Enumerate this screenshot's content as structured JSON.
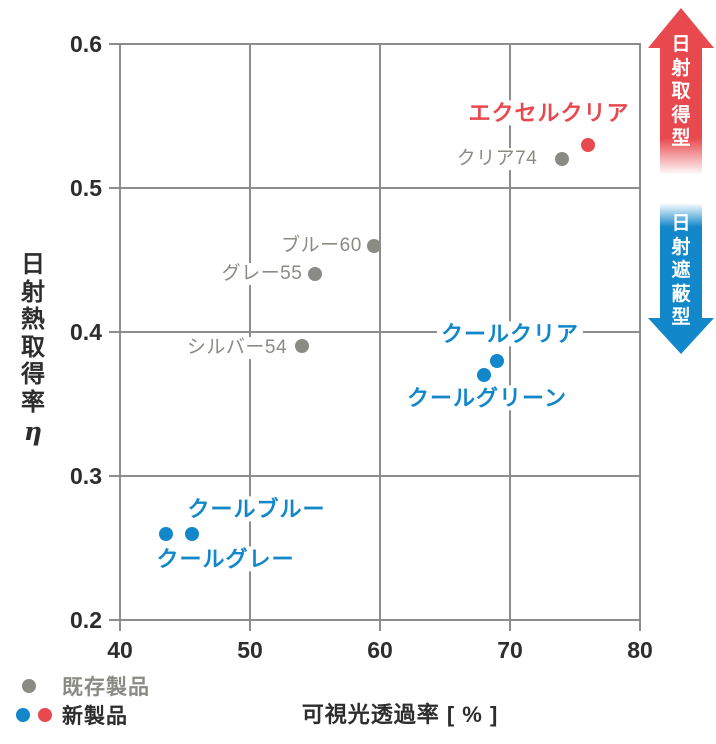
{
  "colors": {
    "red": "#e8494f",
    "blue": "#1287c9",
    "gray": "#8b8b85",
    "grid": "#8d8d8d",
    "text": "#2d2d2d"
  },
  "chart_data": {
    "type": "scatter",
    "title": "",
    "xlabel": "可視光透過率 [ % ]",
    "ylabel": "日射熱取得率",
    "ylabel_symbol": "η",
    "xlim": [
      40,
      80
    ],
    "ylim": [
      0.2,
      0.6
    ],
    "xticks": [
      40,
      50,
      60,
      70,
      80
    ],
    "yticks": [
      0.6,
      0.5,
      0.4,
      0.3,
      0.2
    ],
    "grid": true,
    "legend_position": "bottom-left",
    "series": [
      {
        "name": "既存製品",
        "color": "gray",
        "points": [
          {
            "label": "クリア74",
            "x": 74,
            "y": 0.52,
            "label_dx": -65,
            "label_dy": 0
          },
          {
            "label": "ブルー60",
            "x": 59.5,
            "y": 0.46,
            "label_dx": -52,
            "label_dy": 0
          },
          {
            "label": "グレー55",
            "x": 55,
            "y": 0.44,
            "label_dx": -53,
            "label_dy": 0
          },
          {
            "label": "シルバー54",
            "x": 54,
            "y": 0.39,
            "label_dx": -65,
            "label_dy": 2
          }
        ]
      },
      {
        "name": "新製品",
        "color": "red",
        "points": [
          {
            "label": "エクセルクリア",
            "x": 76,
            "y": 0.53,
            "label_dx": -39,
            "label_dy": -32
          }
        ]
      },
      {
        "name": "新製品",
        "color": "blue",
        "points": [
          {
            "label": "クールクリア",
            "x": 69,
            "y": 0.38,
            "label_dx": 13,
            "label_dy": -27
          },
          {
            "label": "クールグリーン",
            "x": 68,
            "y": 0.37,
            "label_dx": 3,
            "label_dy": 23
          },
          {
            "label": "クールブルー",
            "x": 45.5,
            "y": 0.26,
            "label_dx": 65,
            "label_dy": -25
          },
          {
            "label": "クールグレー",
            "x": 43.5,
            "y": 0.26,
            "label_dx": 60,
            "label_dy": 25
          }
        ]
      }
    ]
  },
  "annotations": {
    "up_arrow_label": "日射取得型",
    "down_arrow_label": "日射遮蔽型"
  }
}
